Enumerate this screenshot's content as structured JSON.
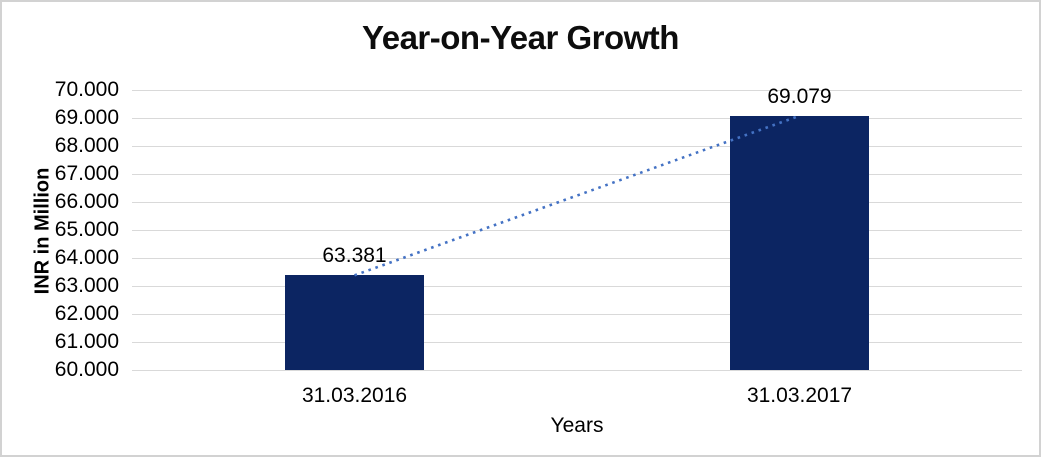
{
  "chart_data": {
    "type": "bar",
    "title": "Year-on-Year Growth",
    "xlabel": "Years",
    "ylabel": "INR in Million",
    "categories": [
      "31.03.2016",
      "31.03.2017"
    ],
    "series": [
      {
        "name": "INR in Million",
        "values": [
          63.381,
          69.079
        ]
      }
    ],
    "value_labels": [
      "63.381",
      "69.079"
    ],
    "ylim": [
      60,
      70
    ],
    "ytick_step": 1,
    "yticks": [
      "60.000",
      "61.000",
      "62.000",
      "63.000",
      "64.000",
      "65.000",
      "66.000",
      "67.000",
      "68.000",
      "69.000",
      "70.000"
    ],
    "grid": true,
    "legend_position": "none",
    "trendline": {
      "type": "linear",
      "style": "dotted",
      "color": "#4472c4"
    },
    "colors": {
      "bar": "#0c2562",
      "gridline": "#d9d9d9",
      "text": "#000000",
      "border": "#d2d2d2",
      "background": "#ffffff"
    }
  }
}
